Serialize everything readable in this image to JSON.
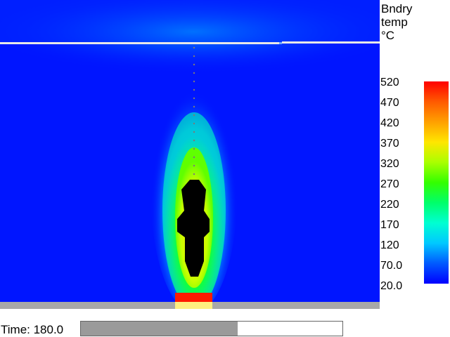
{
  "legend": {
    "title": "Bndry\ntemp\n°C",
    "ticks": [
      "520",
      "470",
      "420",
      "370",
      "320",
      "270",
      "220",
      "170",
      "120",
      "70.0",
      "20.0"
    ]
  },
  "playback": {
    "time_label": "Time: 180.0",
    "progress_fraction": 0.6
  },
  "colors": {
    "background_cold": "#0015ff",
    "floor": "#a8a8a8",
    "burner_top": "#ff1a00",
    "burner_base": "#ffef80"
  }
}
